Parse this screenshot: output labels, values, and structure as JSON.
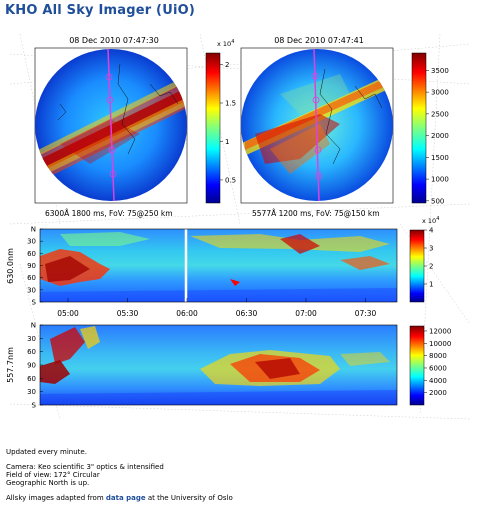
{
  "page": {
    "title": "KHO All Sky Imager (UiO)"
  },
  "sky_left": {
    "timestamp": "08 Dec 2010 07:47:30",
    "caption": "6300Å  1800 ms, FoV: 75@250 km",
    "colorbar": {
      "exponent": "x 10",
      "exponent_power": "4",
      "ticks": [
        "2",
        "1.5",
        "1",
        "0.5"
      ],
      "tick_values": [
        2,
        1.5,
        1,
        0.5
      ],
      "range": [
        0.2,
        2.15
      ]
    }
  },
  "sky_right": {
    "timestamp": "08 Dec 2010 07:47:41",
    "caption": "5577Å  1200 ms, FoV: 75@150 km",
    "colorbar": {
      "ticks": [
        "3500",
        "3000",
        "2500",
        "2000",
        "1500",
        "1000",
        "500"
      ],
      "tick_values": [
        3500,
        3000,
        2500,
        2000,
        1500,
        1000,
        500
      ],
      "range": [
        450,
        3900
      ]
    }
  },
  "keogram_top": {
    "ylabel": "630.0nm",
    "yticks": [
      "N",
      "30",
      "60",
      "90",
      "60",
      "30",
      "S"
    ],
    "colorbar": {
      "exponent": "x 10",
      "exponent_power": "4",
      "ticks": [
        "4",
        "3",
        "2",
        "1"
      ],
      "tick_values": [
        4,
        3,
        2,
        1
      ],
      "range": [
        0,
        4
      ]
    }
  },
  "keogram_bottom": {
    "ylabel": "557.7nm",
    "yticks": [
      "N",
      "30",
      "60",
      "90",
      "60",
      "30",
      "S"
    ],
    "colorbar": {
      "ticks": [
        "12000",
        "10000",
        "8000",
        "6000",
        "4000",
        "2000"
      ],
      "tick_values": [
        12000,
        10000,
        8000,
        6000,
        4000,
        2000
      ],
      "range": [
        0,
        12800
      ]
    }
  },
  "time_axis": {
    "ticks": [
      "05:00",
      "05:30",
      "06:00",
      "06:30",
      "07:00",
      "07:30"
    ]
  },
  "footer": {
    "update_note": "Updated every minute.",
    "camera": "Camera: Keo scientific 3\" optics & intensified",
    "fov": "Field of view: 172° Circular",
    "north": "Geographic North is up.",
    "source_prefix": "Allsky images adapted from",
    "source_link": "data page",
    "source_suffix": "at the University of Oslo"
  },
  "colors": {
    "title": "#1f4e9a",
    "link": "#1f4e9a",
    "meridian": "#e040e0"
  }
}
